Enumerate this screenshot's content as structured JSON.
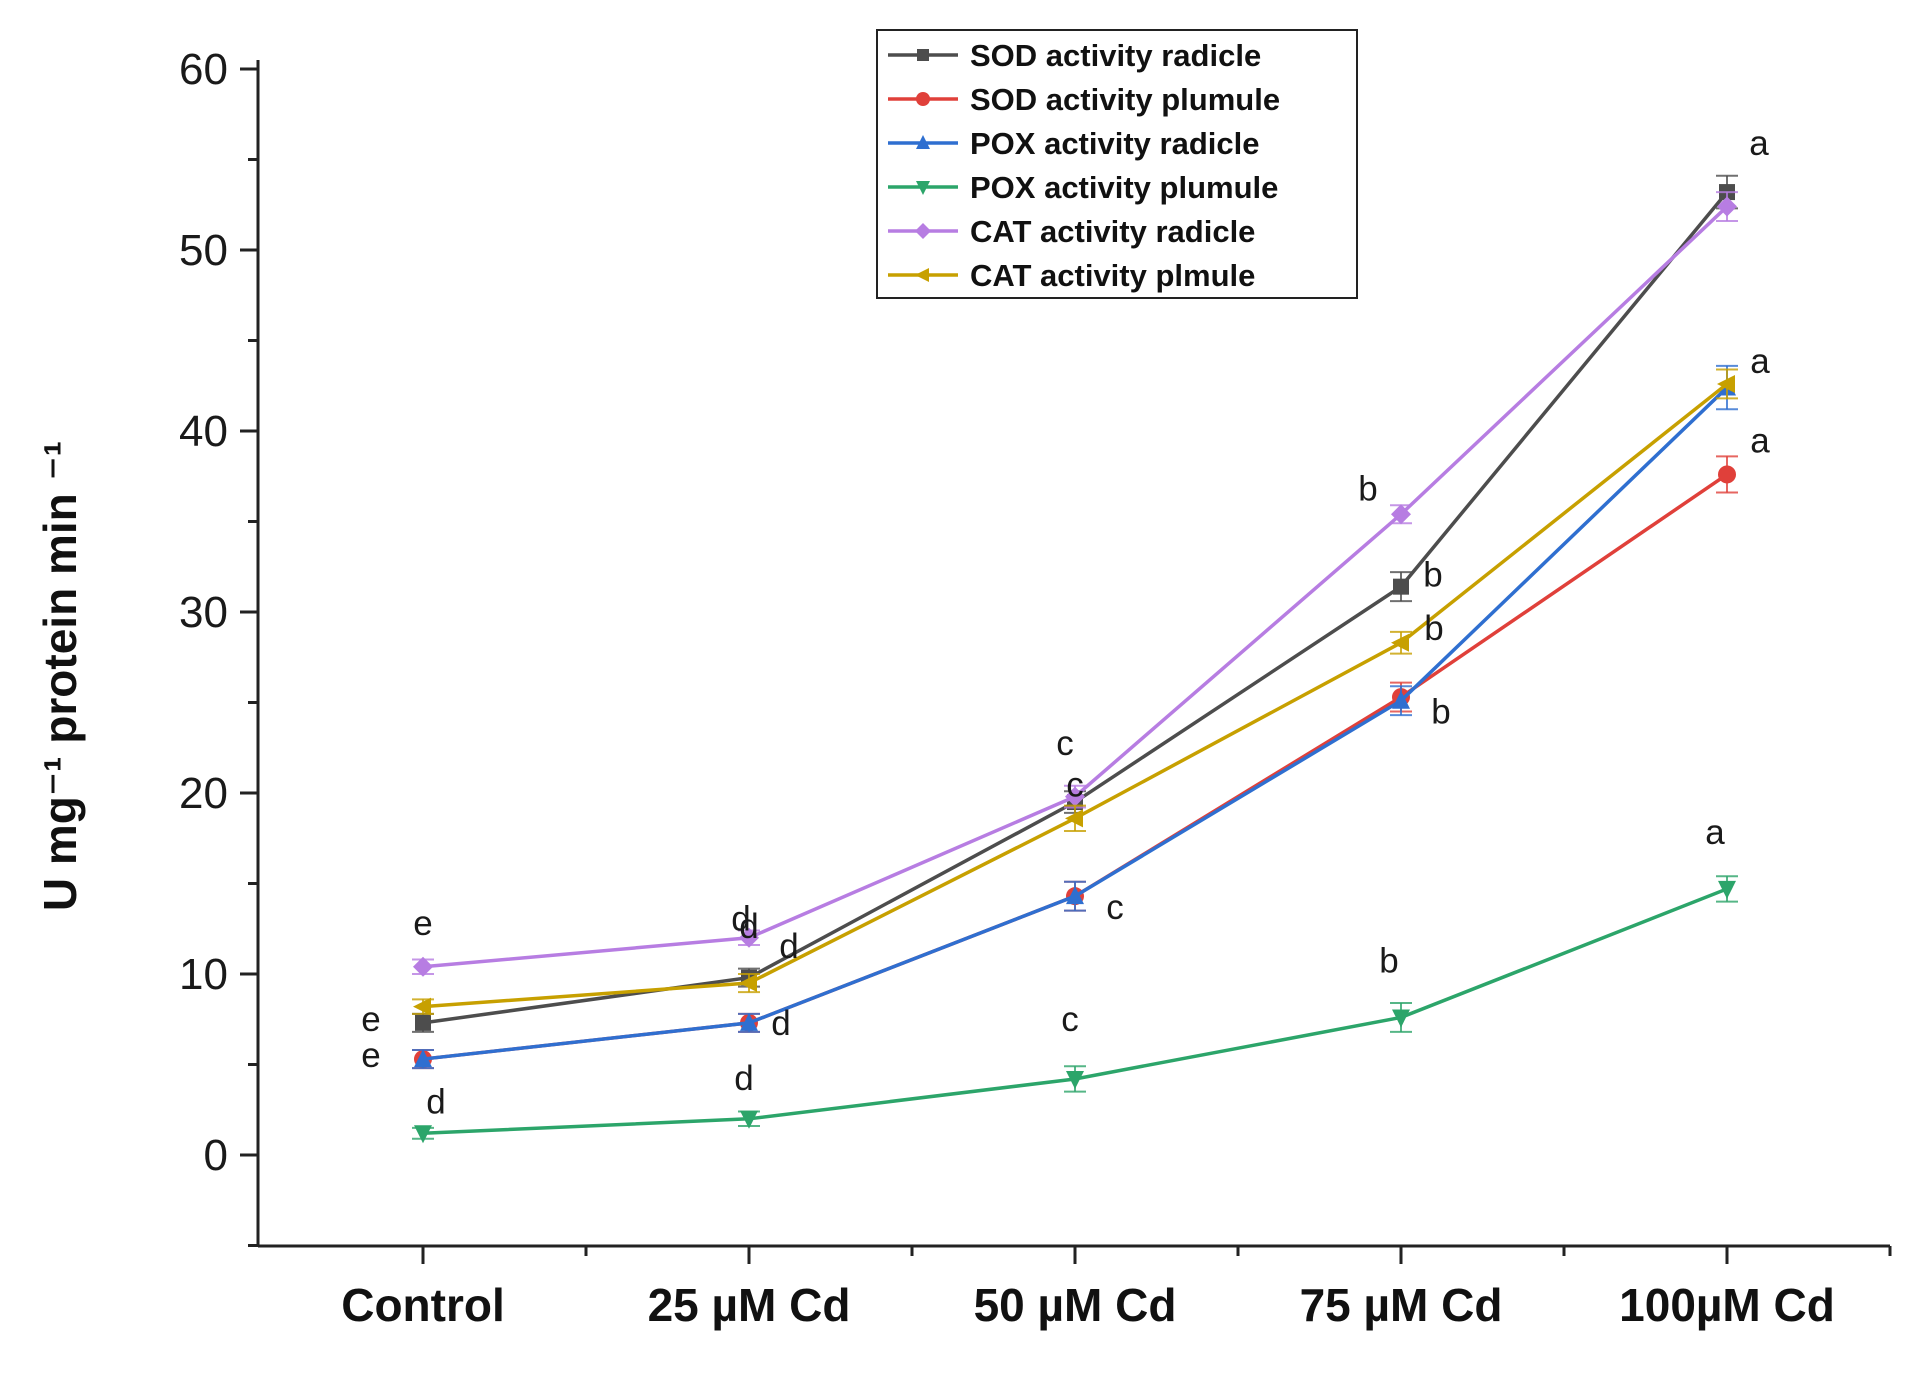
{
  "chart_data": {
    "type": "line",
    "title": "",
    "xlabel": "",
    "ylabel": "U mg⁻¹ protein min ⁻¹",
    "ylim": [
      -5,
      60
    ],
    "yticks": [
      0,
      10,
      20,
      30,
      40,
      50,
      60
    ],
    "categories": [
      "Control",
      "25 µM Cd",
      "50 µM Cd",
      "75 µM Cd",
      "100µM Cd"
    ],
    "legend_position": "top-center",
    "series": [
      {
        "name": "SOD activity radicle",
        "color": "#4d4d4d",
        "marker": "square",
        "values": [
          7.3,
          9.8,
          19.5,
          31.4,
          53.2
        ],
        "errors": [
          0.5,
          0.5,
          0.6,
          0.8,
          0.9
        ],
        "letters": [
          "e",
          "d",
          "c",
          "b",
          "a"
        ]
      },
      {
        "name": "SOD activity plumule",
        "color": "#e0403a",
        "marker": "circle",
        "values": [
          5.3,
          7.3,
          14.3,
          25.3,
          37.6
        ],
        "errors": [
          0.5,
          0.5,
          0.8,
          0.8,
          1.0
        ],
        "letters": [
          "",
          "",
          "",
          "",
          "a"
        ]
      },
      {
        "name": "POX activity radicle",
        "color": "#2f6fd0",
        "marker": "triangle-up",
        "values": [
          5.3,
          7.3,
          14.3,
          25.1,
          42.4
        ],
        "errors": [
          0.5,
          0.5,
          0.8,
          0.8,
          1.2
        ],
        "letters": [
          "e",
          "d",
          "c",
          "b",
          ""
        ]
      },
      {
        "name": "POX activity plumule",
        "color": "#2ca56a",
        "marker": "triangle-down",
        "values": [
          1.2,
          2.0,
          4.2,
          7.6,
          14.7
        ],
        "errors": [
          0.3,
          0.4,
          0.7,
          0.8,
          0.7
        ],
        "letters": [
          "d",
          "d",
          "c",
          "b",
          "a"
        ]
      },
      {
        "name": "CAT activity radicle",
        "color": "#b77de2",
        "marker": "diamond",
        "values": [
          10.4,
          12.0,
          19.8,
          35.4,
          52.4
        ],
        "errors": [
          0.4,
          0.4,
          0.6,
          0.5,
          0.8
        ],
        "letters": [
          "e",
          "d",
          "c",
          "b",
          ""
        ]
      },
      {
        "name": "CAT activity plmule",
        "color": "#c7a000",
        "marker": "triangle-left",
        "values": [
          8.2,
          9.5,
          18.6,
          28.3,
          42.6
        ],
        "errors": [
          0.4,
          0.5,
          0.7,
          0.6,
          0.8
        ],
        "letters": [
          "",
          "d",
          "",
          "b",
          "a"
        ]
      }
    ]
  }
}
